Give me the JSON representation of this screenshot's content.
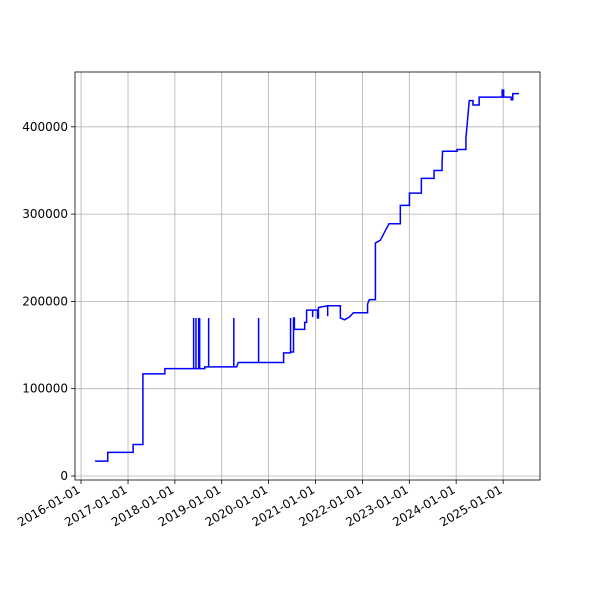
{
  "chart_data": {
    "type": "line",
    "color": "#0000ff",
    "grid": true,
    "xlim": [
      "2015-11-15",
      "2025-10-15"
    ],
    "xticks": [
      "2016-01-01",
      "2017-01-01",
      "2018-01-01",
      "2019-01-01",
      "2020-01-01",
      "2021-01-01",
      "2022-01-01",
      "2023-01-01",
      "2024-01-01",
      "2025-01-01"
    ],
    "ylim": [
      -4600,
      462800
    ],
    "yticks": [
      0,
      100000,
      200000,
      300000,
      400000
    ],
    "x": [
      "2016-04-19",
      "2016-07-27",
      "2016-07-27",
      "2017-02-10",
      "2017-02-10",
      "2017-04-27",
      "2017-04-27",
      "2017-10-15",
      "2017-10-15",
      "2018-05-27",
      "2018-05-27",
      "2018-05-27",
      "2018-06-14",
      "2018-06-14",
      "2018-06-14",
      "2018-07-05",
      "2018-07-05",
      "2018-07-05",
      "2018-07-13",
      "2018-07-13",
      "2018-07-13",
      "2018-08-22",
      "2018-08-22",
      "2018-09-21",
      "2018-09-21",
      "2018-09-21",
      "2019-04-05",
      "2019-04-05",
      "2019-04-05",
      "2019-04-27",
      "2019-05-10",
      "2019-10-15",
      "2019-10-15",
      "2019-10-15",
      "2020-04-27",
      "2020-04-27",
      "2020-06-20",
      "2020-06-20",
      "2020-06-20",
      "2020-07-13",
      "2020-07-13",
      "2020-07-20",
      "2020-07-20",
      "2020-10-08",
      "2020-10-08",
      "2020-10-23",
      "2020-10-23",
      "2020-12-09",
      "2020-12-09",
      "2020-12-09",
      "2021-01-16",
      "2021-01-16",
      "2021-01-23",
      "2021-01-23",
      "2021-04-05",
      "2021-04-05",
      "2021-04-05",
      "2021-07-13",
      "2021-07-13",
      "2021-08-14",
      "2021-09-20",
      "2021-10-23",
      "2022-02-10",
      "2022-02-10",
      "2022-02-24",
      "2022-04-12",
      "2022-04-12",
      "2022-05-20",
      "2022-07-27",
      "2022-10-23",
      "2022-10-23",
      "2023-01-02",
      "2023-01-02",
      "2023-04-05",
      "2023-04-05",
      "2023-07-13",
      "2023-07-13",
      "2023-09-13",
      "2023-09-13",
      "2023-09-17",
      "2024-01-08",
      "2024-01-08",
      "2024-03-17",
      "2024-03-17",
      "2024-04-12",
      "2024-05-11",
      "2024-05-11",
      "2024-06-28",
      "2024-06-28",
      "2024-12-24",
      "2024-12-24",
      "2025-01-05",
      "2025-01-05",
      "2025-03-04",
      "2025-03-04",
      "2025-03-17",
      "2025-03-17",
      "2025-05-05"
    ],
    "values": [
      17000,
      17000,
      27000,
      27000,
      36000,
      36000,
      117000,
      117000,
      123000,
      123000,
      181000,
      123000,
      123000,
      181000,
      123000,
      123000,
      181000,
      123000,
      123000,
      181000,
      123000,
      123000,
      125000,
      125000,
      181000,
      125000,
      125000,
      181000,
      125000,
      125000,
      130000,
      130000,
      181000,
      130000,
      130000,
      141000,
      141000,
      181000,
      142000,
      142000,
      181000,
      181000,
      168000,
      168000,
      176000,
      176000,
      190000,
      190000,
      182000,
      190000,
      190000,
      181000,
      181000,
      193000,
      195000,
      183000,
      195000,
      195000,
      181000,
      179000,
      182000,
      187000,
      187000,
      197000,
      202000,
      202000,
      267000,
      270000,
      289000,
      289000,
      310000,
      310000,
      324000,
      324000,
      341000,
      341000,
      350000,
      350000,
      357000,
      372000,
      372000,
      374000,
      374000,
      387000,
      430000,
      430000,
      425000,
      425000,
      434000,
      434000,
      442000,
      442000,
      434000,
      434000,
      431000,
      431000,
      438000,
      438000
    ]
  }
}
